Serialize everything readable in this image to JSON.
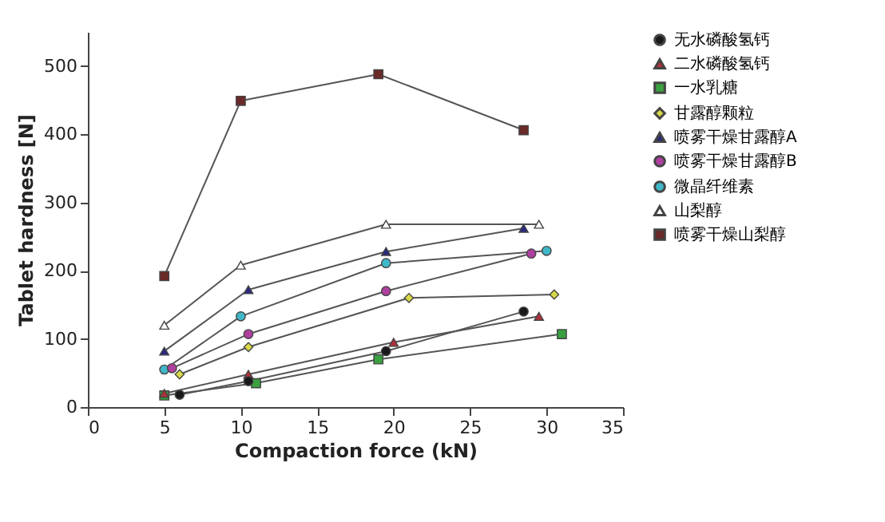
{
  "chart_data": {
    "type": "line",
    "xlabel": "Compaction force (kN)",
    "ylabel": "Tablet hardness [N]",
    "xlim": [
      0,
      35
    ],
    "xticks": [
      0,
      5,
      10,
      15,
      20,
      25,
      30,
      35
    ],
    "ylim": [
      0,
      550
    ],
    "yticks": [
      0,
      100,
      200,
      300,
      400,
      500
    ],
    "grid": false,
    "legend": "right",
    "series": [
      {
        "name": "无水磷酸氢钙",
        "color": "#1a1a1a",
        "marker": "circle",
        "x": [
          6,
          10.5,
          19.5,
          28.5
        ],
        "values": [
          18,
          38,
          82,
          140
        ]
      },
      {
        "name": "二水磷酸氢钙",
        "color": "#b0303a",
        "marker": "triangle",
        "x": [
          5,
          10.5,
          20,
          29.5
        ],
        "values": [
          20,
          48,
          95,
          133
        ]
      },
      {
        "name": "一水乳糖",
        "color": "#3aa040",
        "marker": "square",
        "x": [
          5,
          11,
          19,
          31
        ],
        "values": [
          17,
          35,
          70,
          107
        ]
      },
      {
        "name": "甘露醇颗粒",
        "color": "#d8d84a",
        "marker": "diamond",
        "x": [
          6,
          10.5,
          21,
          30.5
        ],
        "values": [
          48,
          88,
          160,
          165
        ]
      },
      {
        "name": "喷雾干燥甘露醇A",
        "color": "#2a2a80",
        "marker": "triangle",
        "x": [
          5,
          10.5,
          19.5,
          28.5
        ],
        "values": [
          82,
          172,
          228,
          262
        ]
      },
      {
        "name": "喷雾干燥甘露醇B",
        "color": "#b040a0",
        "marker": "circle",
        "x": [
          5.5,
          10.5,
          19.5,
          29
        ],
        "values": [
          57,
          107,
          170,
          225
        ]
      },
      {
        "name": "微晶纤维素",
        "color": "#40b8c8",
        "marker": "circle",
        "x": [
          5,
          10,
          19.5,
          30
        ],
        "values": [
          55,
          133,
          211,
          229
        ]
      },
      {
        "name": "山梨醇",
        "color": "#ffffff",
        "marker": "triangle",
        "x": [
          5,
          10,
          19.5,
          29.5
        ],
        "values": [
          120,
          208,
          268,
          268
        ]
      },
      {
        "name": "喷雾干燥山梨醇",
        "color": "#6a2a28",
        "marker": "square",
        "x": [
          5,
          10,
          19,
          28.5
        ],
        "values": [
          192,
          449,
          488,
          406
        ]
      }
    ]
  }
}
